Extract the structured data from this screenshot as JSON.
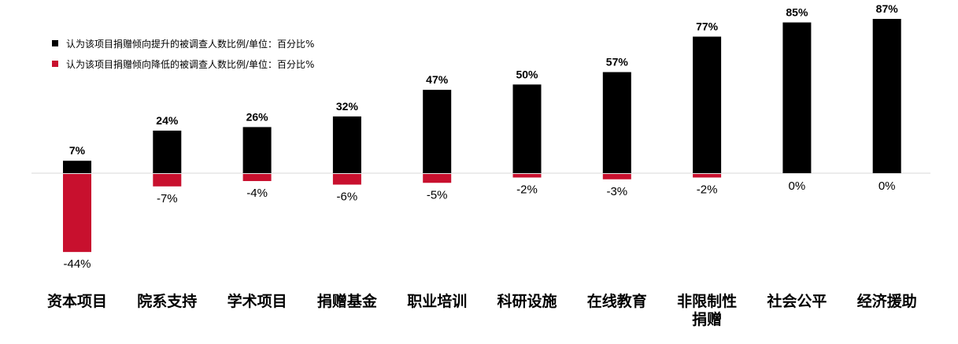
{
  "chart_data": {
    "type": "bar",
    "title": "",
    "xlabel": "",
    "ylabel": "",
    "ylim": [
      -44,
      87
    ],
    "grid": false,
    "legend_position": "top-left",
    "categories": [
      "资本项目",
      "院系支持",
      "学术项目",
      "捐赠基金",
      "职业培训",
      "科研设施",
      "在线教育",
      "非限制性\n捐赠",
      "社会公平",
      "经济援助"
    ],
    "category_lines": [
      [
        "资本项目"
      ],
      [
        "院系支持"
      ],
      [
        "学术项目"
      ],
      [
        "捐赠基金"
      ],
      [
        "职业培训"
      ],
      [
        "科研设施"
      ],
      [
        "在线教育"
      ],
      [
        "非限制性",
        "捐赠"
      ],
      [
        "社会公平"
      ],
      [
        "经济援助"
      ]
    ],
    "series": [
      {
        "name": "认为该项目捐赠倾向提升的被调查人数比例/单位：百分比%",
        "color": "#000000",
        "values": [
          7,
          24,
          26,
          32,
          47,
          50,
          57,
          77,
          85,
          87
        ],
        "labels": [
          "7%",
          "24%",
          "26%",
          "32%",
          "47%",
          "50%",
          "57%",
          "77%",
          "85%",
          "87%"
        ]
      },
      {
        "name": "认为该项目捐赠倾向降低的被调查人数比例/单位：百分比%",
        "color": "#c8102e",
        "values": [
          -44,
          -7,
          -4,
          -6,
          -5,
          -2,
          -3,
          -2,
          0,
          0
        ],
        "labels": [
          "-44%",
          "-7%",
          "-4%",
          "-6%",
          "-5%",
          "-2%",
          "-3%",
          "-2%",
          "0%",
          "0%"
        ]
      }
    ]
  }
}
